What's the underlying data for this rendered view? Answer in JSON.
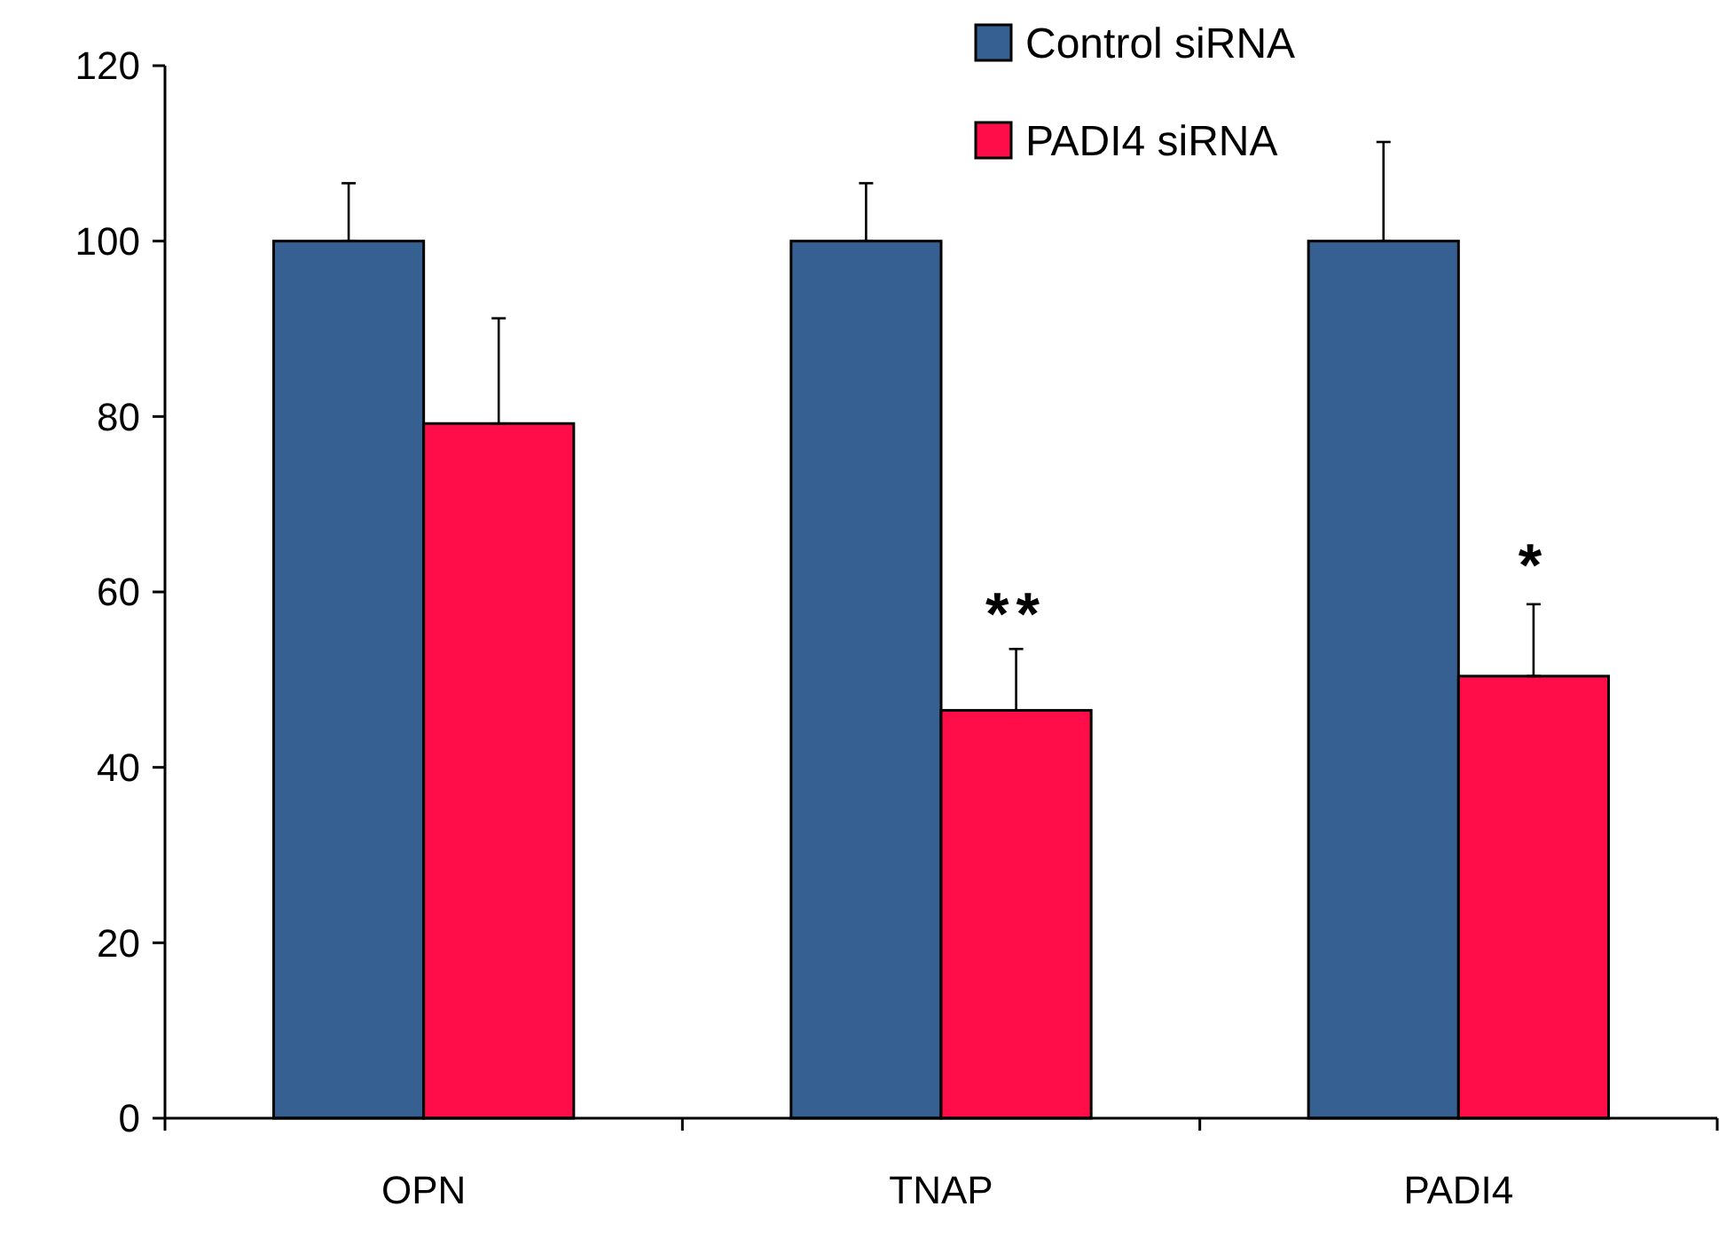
{
  "chart_data": {
    "type": "bar",
    "categories": [
      "OPN",
      "TNAP",
      "PADI4"
    ],
    "series": [
      {
        "name": "Control siRNA",
        "color": "#376092",
        "values": [
          100,
          100,
          100
        ],
        "errors": [
          [
            100,
            106.6
          ],
          [
            100,
            106.6
          ],
          [
            100,
            111.3
          ]
        ]
      },
      {
        "name": "PADI4 siRNA",
        "color": "#ff0d48",
        "values": [
          79.2,
          46.5,
          50.4
        ],
        "errors": [
          [
            79.2,
            91.2
          ],
          [
            46.5,
            53.5
          ],
          [
            50.4,
            58.6
          ]
        ]
      }
    ],
    "ylim": [
      0,
      120
    ],
    "yticks": [
      0,
      20,
      40,
      60,
      80,
      100,
      120
    ],
    "grid": false,
    "legend": "top right",
    "annotations": [
      {
        "text": "**",
        "x": "TNAP",
        "y": 60
      },
      {
        "text": "*",
        "x": "PADI4",
        "y": 65.5
      }
    ]
  }
}
